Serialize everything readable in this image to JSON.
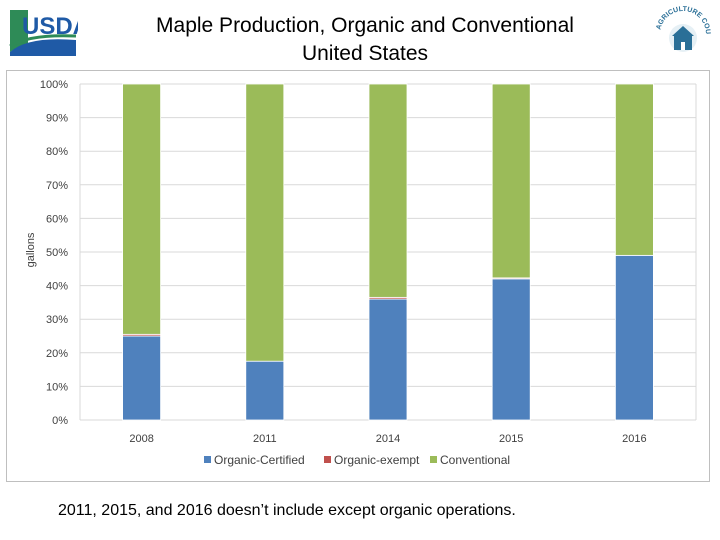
{
  "header": {
    "title_line1": "Maple Production, Organic and Conventional",
    "title_line2": "United States",
    "usda_logo_text": "USDA",
    "county_logo_text": "AGRICULTURE COUNTS"
  },
  "footnote": "2011, 2015, and 2016  doesn’t include except organic operations.",
  "colors": {
    "organic_certified": "#4f81bd",
    "organic_exempt": "#c0504d",
    "conventional": "#9bbb59",
    "usda_blue": "#1f5aa6",
    "usda_green": "#2e8b57"
  },
  "chart_data": {
    "type": "bar",
    "stacked": true,
    "normalized": true,
    "title": "Maple Production, Organic and Conventional United States",
    "xlabel": "",
    "ylabel": "gallons",
    "ylim": [
      0,
      100
    ],
    "yticks": [
      "0%",
      "10%",
      "20%",
      "30%",
      "40%",
      "50%",
      "60%",
      "70%",
      "80%",
      "90%",
      "100%"
    ],
    "categories": [
      "2008",
      "2011",
      "2014",
      "2015",
      "2016"
    ],
    "series": [
      {
        "name": "Organic-Certified",
        "values": [
          25,
          17.5,
          36,
          42,
          49
        ]
      },
      {
        "name": "Organic-exempt",
        "values": [
          0.5,
          0,
          0.5,
          0.3,
          0
        ]
      },
      {
        "name": "Conventional",
        "values": [
          74.5,
          82.5,
          63.5,
          57.7,
          51
        ]
      }
    ],
    "legend": [
      "Organic-Certified",
      "Organic-exempt",
      "Conventional"
    ],
    "legend_position": "bottom",
    "grid": true
  }
}
